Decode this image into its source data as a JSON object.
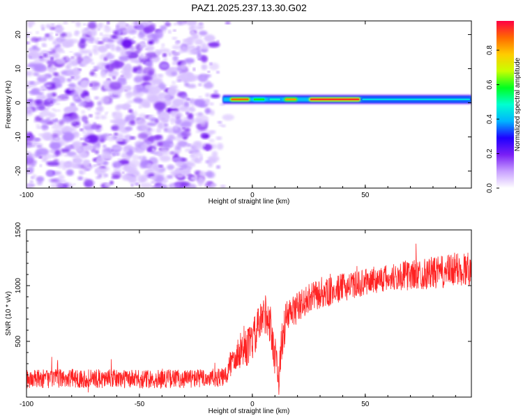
{
  "title": "PAZ1.2025.237.13.30.G02",
  "chart_data": [
    {
      "type": "heatmap",
      "xlabel": "Height of straight line (km)",
      "ylabel": "Frequency (Hz)",
      "xlim": [
        -100,
        97
      ],
      "ylim": [
        -25,
        24
      ],
      "xticks": [
        -100,
        -50,
        0,
        50
      ],
      "yticks": [
        -20,
        -10,
        0,
        10,
        20
      ],
      "noise_region_x": [
        -100,
        -13
      ],
      "signal_band": {
        "x_start": -13,
        "x_end": 97,
        "frequency": 1.0,
        "segments": [
          {
            "x0": -10,
            "x1": -1,
            "amp": 0.9
          },
          {
            "x0": 0,
            "x1": 6,
            "amp": 0.6
          },
          {
            "x0": 7,
            "x1": 13,
            "amp": 0.5
          },
          {
            "x0": 14,
            "x1": 20,
            "amp": 0.85
          },
          {
            "x0": 25,
            "x1": 48,
            "amp": 0.95
          },
          {
            "x0": 48,
            "x1": 97,
            "amp": 0.45
          }
        ]
      },
      "colorbar": {
        "label": "Normalized spectral amplitude",
        "ticks": [
          0.0,
          0.2,
          0.4,
          0.6,
          0.8
        ],
        "range": [
          0,
          0.97
        ],
        "colors": [
          "#ffffff",
          "#c8a0ff",
          "#7a1ff5",
          "#1f00ff",
          "#00b4ff",
          "#00ffd0",
          "#00ff20",
          "#c8ff00",
          "#ffcc00",
          "#ff6a00",
          "#ff0044"
        ]
      }
    },
    {
      "type": "line",
      "xlabel": "Height of straight line (km)",
      "ylabel": "SNR (10 * v/v)",
      "xlim": [
        -100,
        97
      ],
      "ylim": [
        0,
        1500
      ],
      "xticks": [
        -100,
        -50,
        0,
        50
      ],
      "yticks": [
        500,
        1000,
        1500
      ],
      "series": [
        {
          "name": "SNR",
          "color": "#ff2222",
          "points": [
            [
              -100,
              160
            ],
            [
              -90,
              165
            ],
            [
              -80,
              170
            ],
            [
              -70,
              165
            ],
            [
              -60,
              165
            ],
            [
              -50,
              160
            ],
            [
              -40,
              165
            ],
            [
              -30,
              165
            ],
            [
              -20,
              170
            ],
            [
              -12,
              175
            ],
            [
              -10,
              280
            ],
            [
              -8,
              380
            ],
            [
              -5,
              420
            ],
            [
              -2,
              450
            ],
            [
              0,
              500
            ],
            [
              3,
              640
            ],
            [
              6,
              760
            ],
            [
              8,
              640
            ],
            [
              10,
              380
            ],
            [
              12,
              180
            ],
            [
              13,
              500
            ],
            [
              15,
              700
            ],
            [
              18,
              770
            ],
            [
              21,
              820
            ],
            [
              24,
              870
            ],
            [
              28,
              910
            ],
            [
              32,
              925
            ],
            [
              36,
              955
            ],
            [
              40,
              985
            ],
            [
              45,
              1005
            ],
            [
              50,
              1030
            ],
            [
              55,
              1055
            ],
            [
              60,
              1065
            ],
            [
              65,
              1085
            ],
            [
              70,
              1095
            ],
            [
              75,
              1105
            ],
            [
              80,
              1115
            ],
            [
              85,
              1120
            ],
            [
              90,
              1140
            ],
            [
              97,
              1155
            ]
          ],
          "noise_amplitude": [
            [
              -100,
              85
            ],
            [
              -12,
              85
            ],
            [
              -10,
              140
            ],
            [
              0,
              180
            ],
            [
              12,
              190
            ],
            [
              20,
              140
            ],
            [
              50,
              120
            ],
            [
              97,
              160
            ]
          ]
        }
      ]
    }
  ]
}
